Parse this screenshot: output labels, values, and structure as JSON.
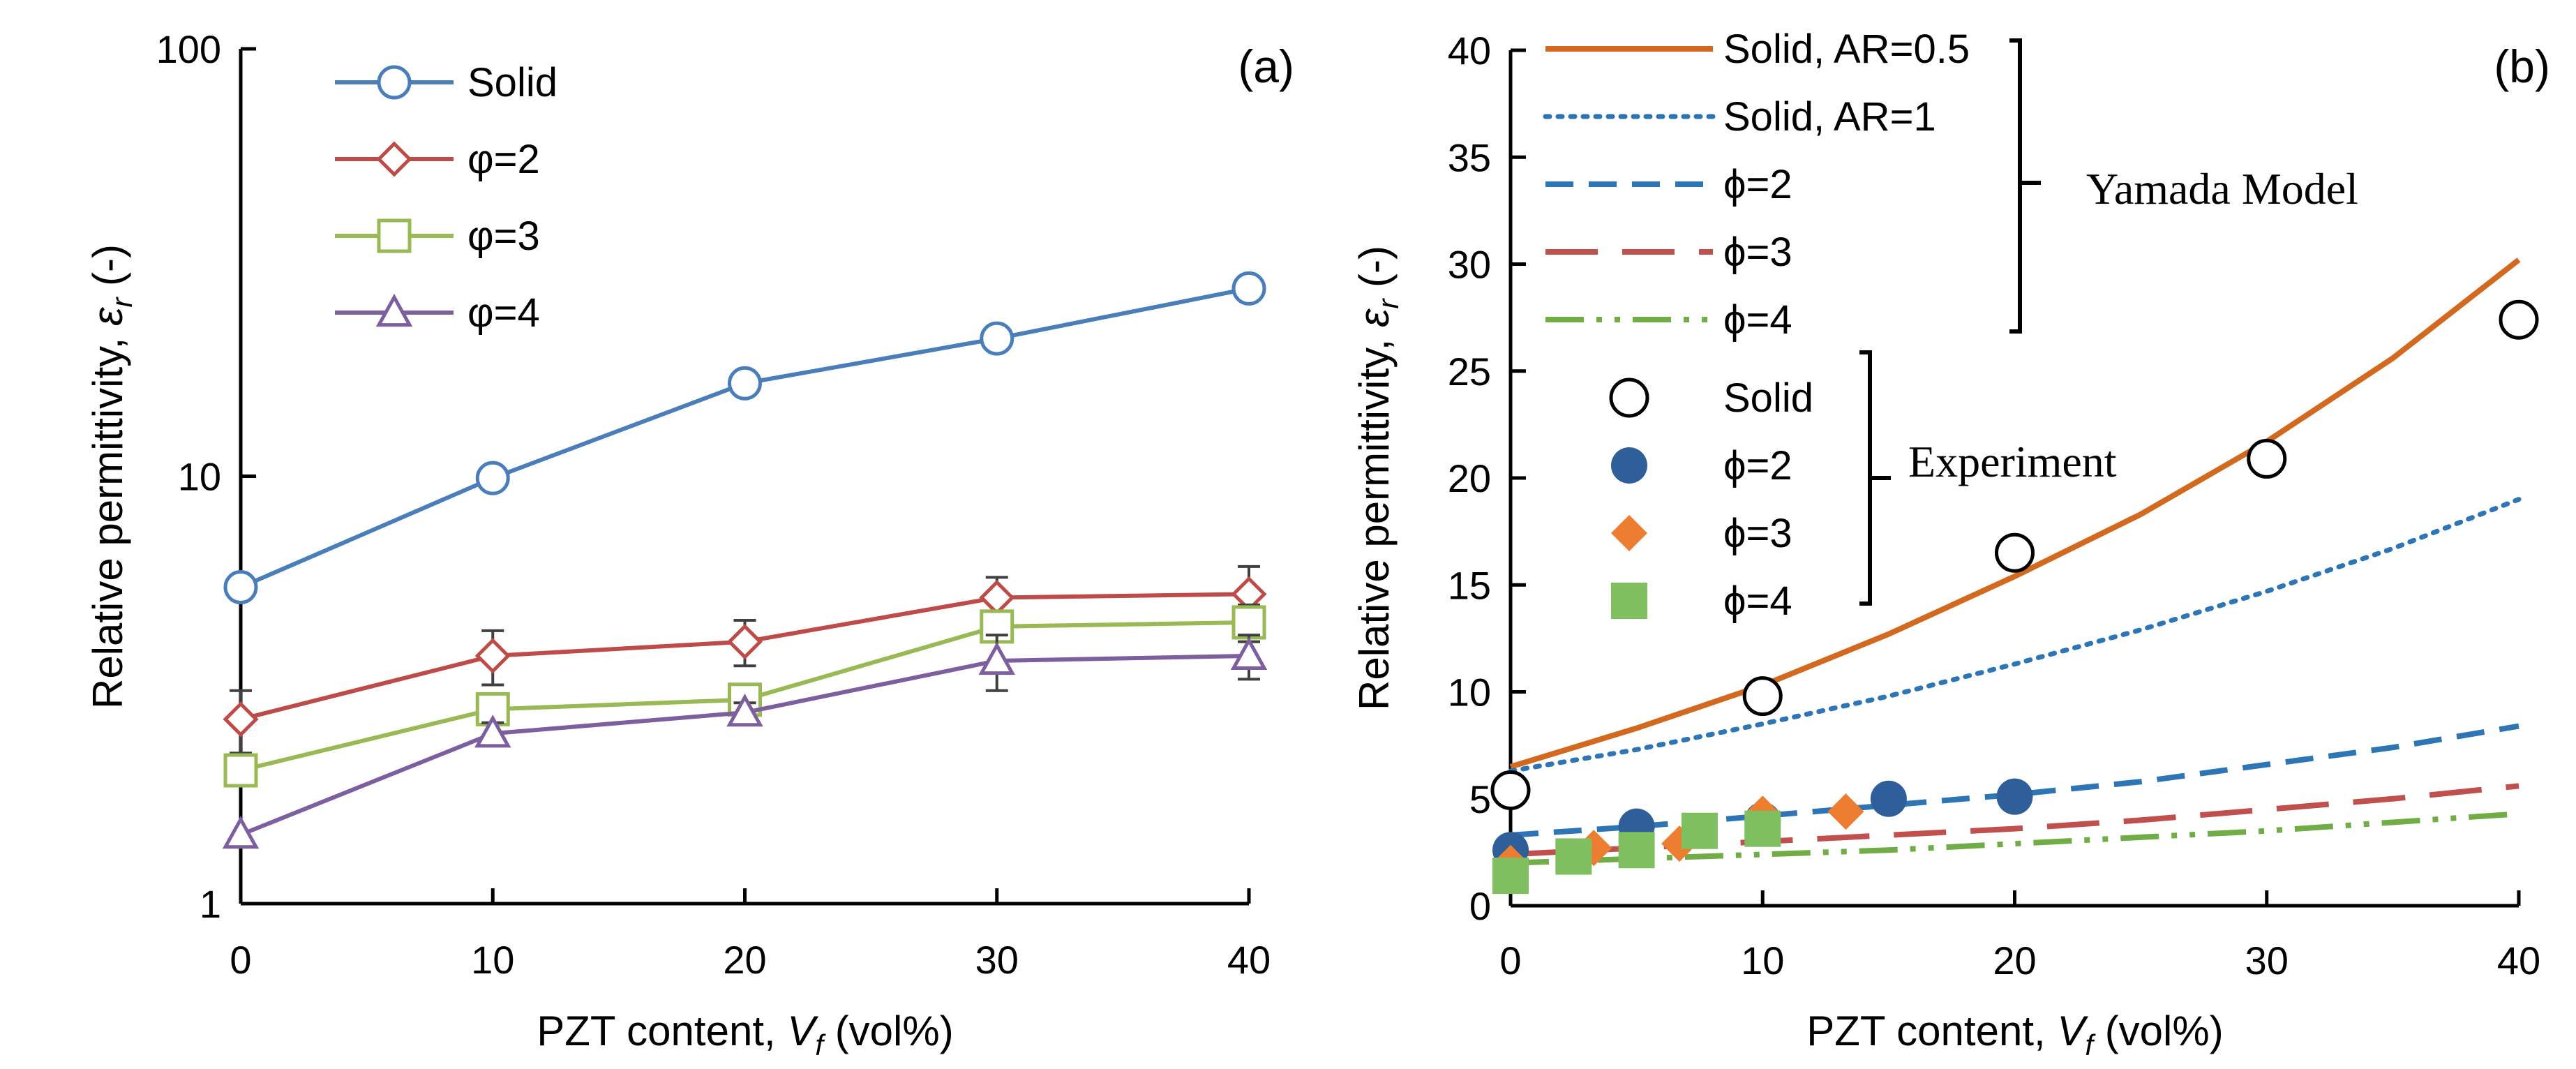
{
  "chart_data": [
    {
      "type": "line",
      "panel_label": "(a)",
      "xlabel": {
        "prefix": "PZT content, ",
        "var": "V",
        "sub": "f",
        "suffix": " (vol%)"
      },
      "ylabel": {
        "prefix": "Relative permittivity, ",
        "var": "ε",
        "sub": "r",
        "suffix": " (-)"
      },
      "yscale": "log",
      "xlim": [
        0,
        40
      ],
      "ylim": [
        1,
        100
      ],
      "xticks": [
        0,
        10,
        20,
        30,
        40
      ],
      "xtick_labels": [
        "0",
        "10",
        "20",
        "30",
        "40"
      ],
      "yticks": [
        1,
        10,
        100
      ],
      "ytick_labels": [
        "1",
        "10",
        "100"
      ],
      "legend_position": "top-left",
      "series": [
        {
          "name": "Solid",
          "marker": "circle",
          "color": "#4a7ebb",
          "x": [
            0,
            10,
            20,
            30,
            40
          ],
          "values": [
            5.5,
            9.9,
            16.5,
            21.0,
            27.5
          ],
          "errors": [
            0,
            0,
            0,
            0,
            0
          ]
        },
        {
          "name": "φ=2",
          "marker": "diamond",
          "color": "#be4b48",
          "x": [
            0,
            10,
            20,
            30,
            40
          ],
          "values": [
            2.7,
            3.8,
            4.1,
            5.2,
            5.3
          ],
          "errors": [
            0.45,
            0.55,
            0.5,
            0.6,
            0.85
          ]
        },
        {
          "name": "φ=3",
          "marker": "square",
          "color": "#98b954",
          "x": [
            0,
            10,
            20,
            30,
            40
          ],
          "values": [
            2.05,
            2.85,
            3.0,
            4.45,
            4.55
          ],
          "errors": [
            0,
            0.2,
            0.2,
            0.35,
            0.45
          ]
        },
        {
          "name": "φ=4",
          "marker": "triangle",
          "color": "#7d5fa0",
          "x": [
            0,
            10,
            20,
            30,
            40
          ],
          "values": [
            1.45,
            2.5,
            2.8,
            3.7,
            3.8
          ],
          "errors": [
            0,
            0.15,
            0.15,
            0.55,
            0.45
          ]
        }
      ]
    },
    {
      "type": "line",
      "panel_label": "(b)",
      "xlabel": {
        "prefix": "PZT content, ",
        "var": "V",
        "sub": "f",
        "suffix": " (vol%)"
      },
      "ylabel": {
        "prefix": "Relative permittivity, ",
        "var": "ε",
        "sub": "r",
        "suffix": " (-)"
      },
      "xlim": [
        0,
        40
      ],
      "ylim": [
        0,
        40
      ],
      "xticks": [
        0,
        10,
        20,
        30,
        40
      ],
      "xtick_labels": [
        "0",
        "10",
        "20",
        "30",
        "40"
      ],
      "yticks": [
        0,
        5,
        10,
        15,
        20,
        25,
        30,
        35,
        40
      ],
      "ytick_labels": [
        "0",
        "5",
        "10",
        "15",
        "20",
        "25",
        "30",
        "35",
        "40"
      ],
      "legend_position": "top-left",
      "model_group_label": "Yamada Model",
      "experiment_group_label": "Experiment",
      "model_series": [
        {
          "name": "Solid, AR=0.5",
          "dash": "solid",
          "color": "#d2691e",
          "x": [
            0,
            5,
            10,
            15,
            20,
            25,
            30,
            35,
            40
          ],
          "values": [
            6.5,
            8.3,
            10.3,
            12.7,
            15.4,
            18.3,
            21.7,
            25.6,
            30.2
          ]
        },
        {
          "name": "Solid, AR=1",
          "dash": "dotted",
          "color": "#2e75b6",
          "x": [
            0,
            5,
            10,
            15,
            20,
            25,
            30,
            35,
            40
          ],
          "values": [
            6.3,
            7.3,
            8.5,
            9.8,
            11.3,
            12.9,
            14.7,
            16.7,
            19.0
          ]
        },
        {
          "name": "ϕ=2",
          "dash": "dashed",
          "color": "#2e75b6",
          "x": [
            0,
            5,
            10,
            15,
            20,
            25,
            30,
            35,
            40
          ],
          "values": [
            3.3,
            3.7,
            4.2,
            4.7,
            5.2,
            5.8,
            6.6,
            7.4,
            8.4
          ]
        },
        {
          "name": "ϕ=3",
          "dash": "longdash",
          "color": "#c0504d",
          "x": [
            0,
            5,
            10,
            15,
            20,
            25,
            30,
            35,
            40
          ],
          "values": [
            2.4,
            2.7,
            3.0,
            3.3,
            3.6,
            4.0,
            4.5,
            5.0,
            5.6
          ]
        },
        {
          "name": "ϕ=4",
          "dash": "dashdotdot",
          "color": "#70ad47",
          "x": [
            0,
            5,
            10,
            15,
            20,
            25,
            30,
            35,
            40
          ],
          "values": [
            2.0,
            2.2,
            2.4,
            2.6,
            2.9,
            3.2,
            3.5,
            3.9,
            4.3
          ]
        }
      ],
      "experiment_series": [
        {
          "name": "Solid",
          "marker": "open-circle",
          "color": "#000000",
          "x": [
            0,
            10,
            20,
            30,
            40
          ],
          "values": [
            5.4,
            9.8,
            16.5,
            20.9,
            27.4
          ]
        },
        {
          "name": "ϕ=2",
          "marker": "filled-circle",
          "color": "#2e5f9a",
          "x": [
            0,
            5,
            10,
            15,
            20
          ],
          "values": [
            2.6,
            3.7,
            4.0,
            5.0,
            5.1
          ]
        },
        {
          "name": "ϕ=3",
          "marker": "filled-diamond",
          "color": "#ed7d31",
          "x": [
            0,
            3.3,
            6.7,
            10,
            13.3
          ],
          "values": [
            2.0,
            2.7,
            2.9,
            4.3,
            4.4
          ]
        },
        {
          "name": "ϕ=4",
          "marker": "filled-square",
          "color": "#7fbf5f",
          "x": [
            0,
            2.5,
            5,
            7.5,
            10
          ],
          "values": [
            1.4,
            2.3,
            2.6,
            3.5,
            3.6
          ]
        }
      ]
    }
  ]
}
